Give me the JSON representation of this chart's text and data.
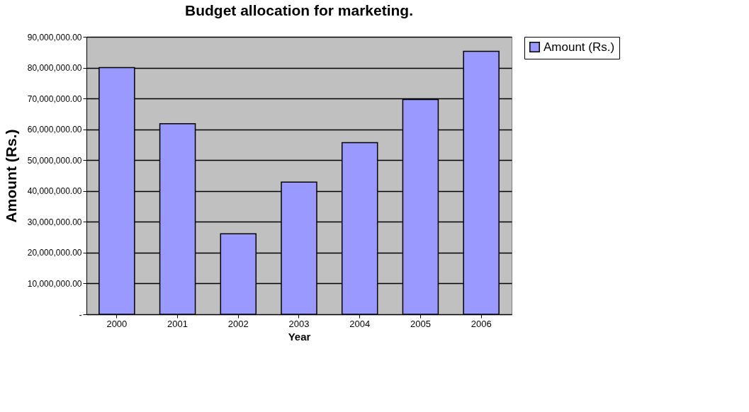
{
  "chart_data": {
    "type": "bar",
    "title": "Budget allocation for marketing.",
    "xlabel": "Year",
    "ylabel": "Amount (Rs.)",
    "categories": [
      "2000",
      "2001",
      "2002",
      "2003",
      "2004",
      "2005",
      "2006"
    ],
    "series": [
      {
        "name": "Amount (Rs.)",
        "color": "#9999ff",
        "values": [
          80000000,
          61800000,
          26100000,
          42900000,
          55700000,
          69700000,
          85300000
        ]
      }
    ],
    "ylim": [
      0,
      90000000
    ],
    "yticks": [
      {
        "value": 0,
        "label": "-"
      },
      {
        "value": 10000000,
        "label": "10,000,000.00"
      },
      {
        "value": 20000000,
        "label": "20,000,000.00"
      },
      {
        "value": 30000000,
        "label": "30,000,000.00"
      },
      {
        "value": 40000000,
        "label": "40,000,000.00"
      },
      {
        "value": 50000000,
        "label": "50,000,000.00"
      },
      {
        "value": 60000000,
        "label": "60,000,000.00"
      },
      {
        "value": 70000000,
        "label": "70,000,000.00"
      },
      {
        "value": 80000000,
        "label": "80,000,000.00"
      },
      {
        "value": 90000000,
        "label": "90,000,000.00"
      }
    ],
    "grid": "y",
    "legend": "right"
  }
}
